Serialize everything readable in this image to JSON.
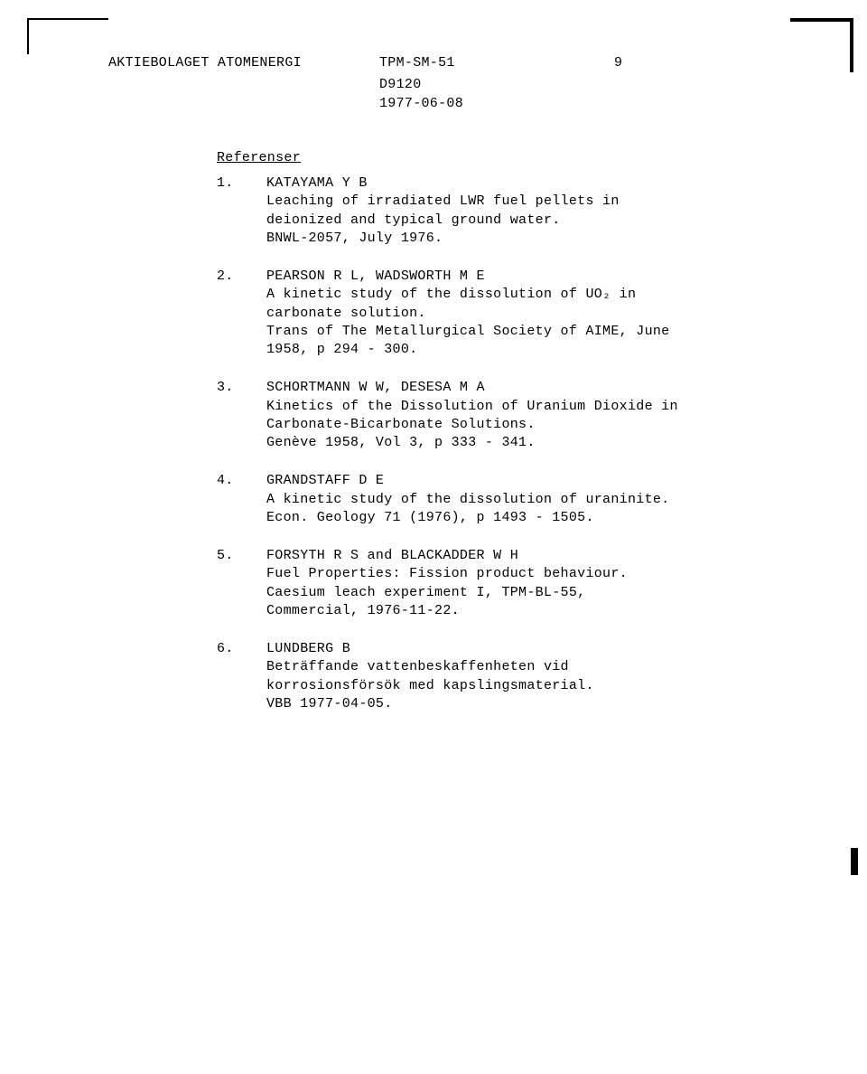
{
  "header": {
    "org": "AKTIEBOLAGET ATOMENERGI",
    "doc_code": "TPM-SM-51",
    "page_num": "9",
    "doc_id": "D9120",
    "date": "1977-06-08"
  },
  "section_title": "Referenser",
  "references": [
    {
      "num": "1.",
      "authors": "KATAYAMA Y B",
      "title": "Leaching of irradiated LWR fuel pellets in deionized and typical ground water.",
      "source": "BNWL-2057, July 1976."
    },
    {
      "num": "2.",
      "authors": "PEARSON R L, WADSWORTH M E",
      "title": "A kinetic study of the dissolution of UO₂ in carbonate solution.",
      "source": "Trans of The Metallurgical Society of AIME, June 1958, p 294 - 300."
    },
    {
      "num": "3.",
      "authors": "SCHORTMANN W W, DESESA M A",
      "title": "Kinetics of the Dissolution of Uranium Dioxide in Carbonate-Bicarbonate Solutions.",
      "source": "Genève 1958, Vol 3, p 333 - 341."
    },
    {
      "num": "4.",
      "authors": "GRANDSTAFF D E",
      "title": "A kinetic study of the dissolution of uraninite.",
      "source": "Econ. Geology 71 (1976), p 1493 - 1505."
    },
    {
      "num": "5.",
      "authors": "FORSYTH R S and BLACKADDER W H",
      "title": "Fuel Properties: Fission product behaviour.",
      "source": "Caesium leach experiment I, TPM-BL-55, Commercial, 1976-11-22."
    },
    {
      "num": "6.",
      "authors": "LUNDBERG B",
      "title": "Beträffande vattenbeskaffenheten vid korrosionsförsök med kapslingsmaterial.",
      "source": "VBB 1977-04-05."
    }
  ]
}
